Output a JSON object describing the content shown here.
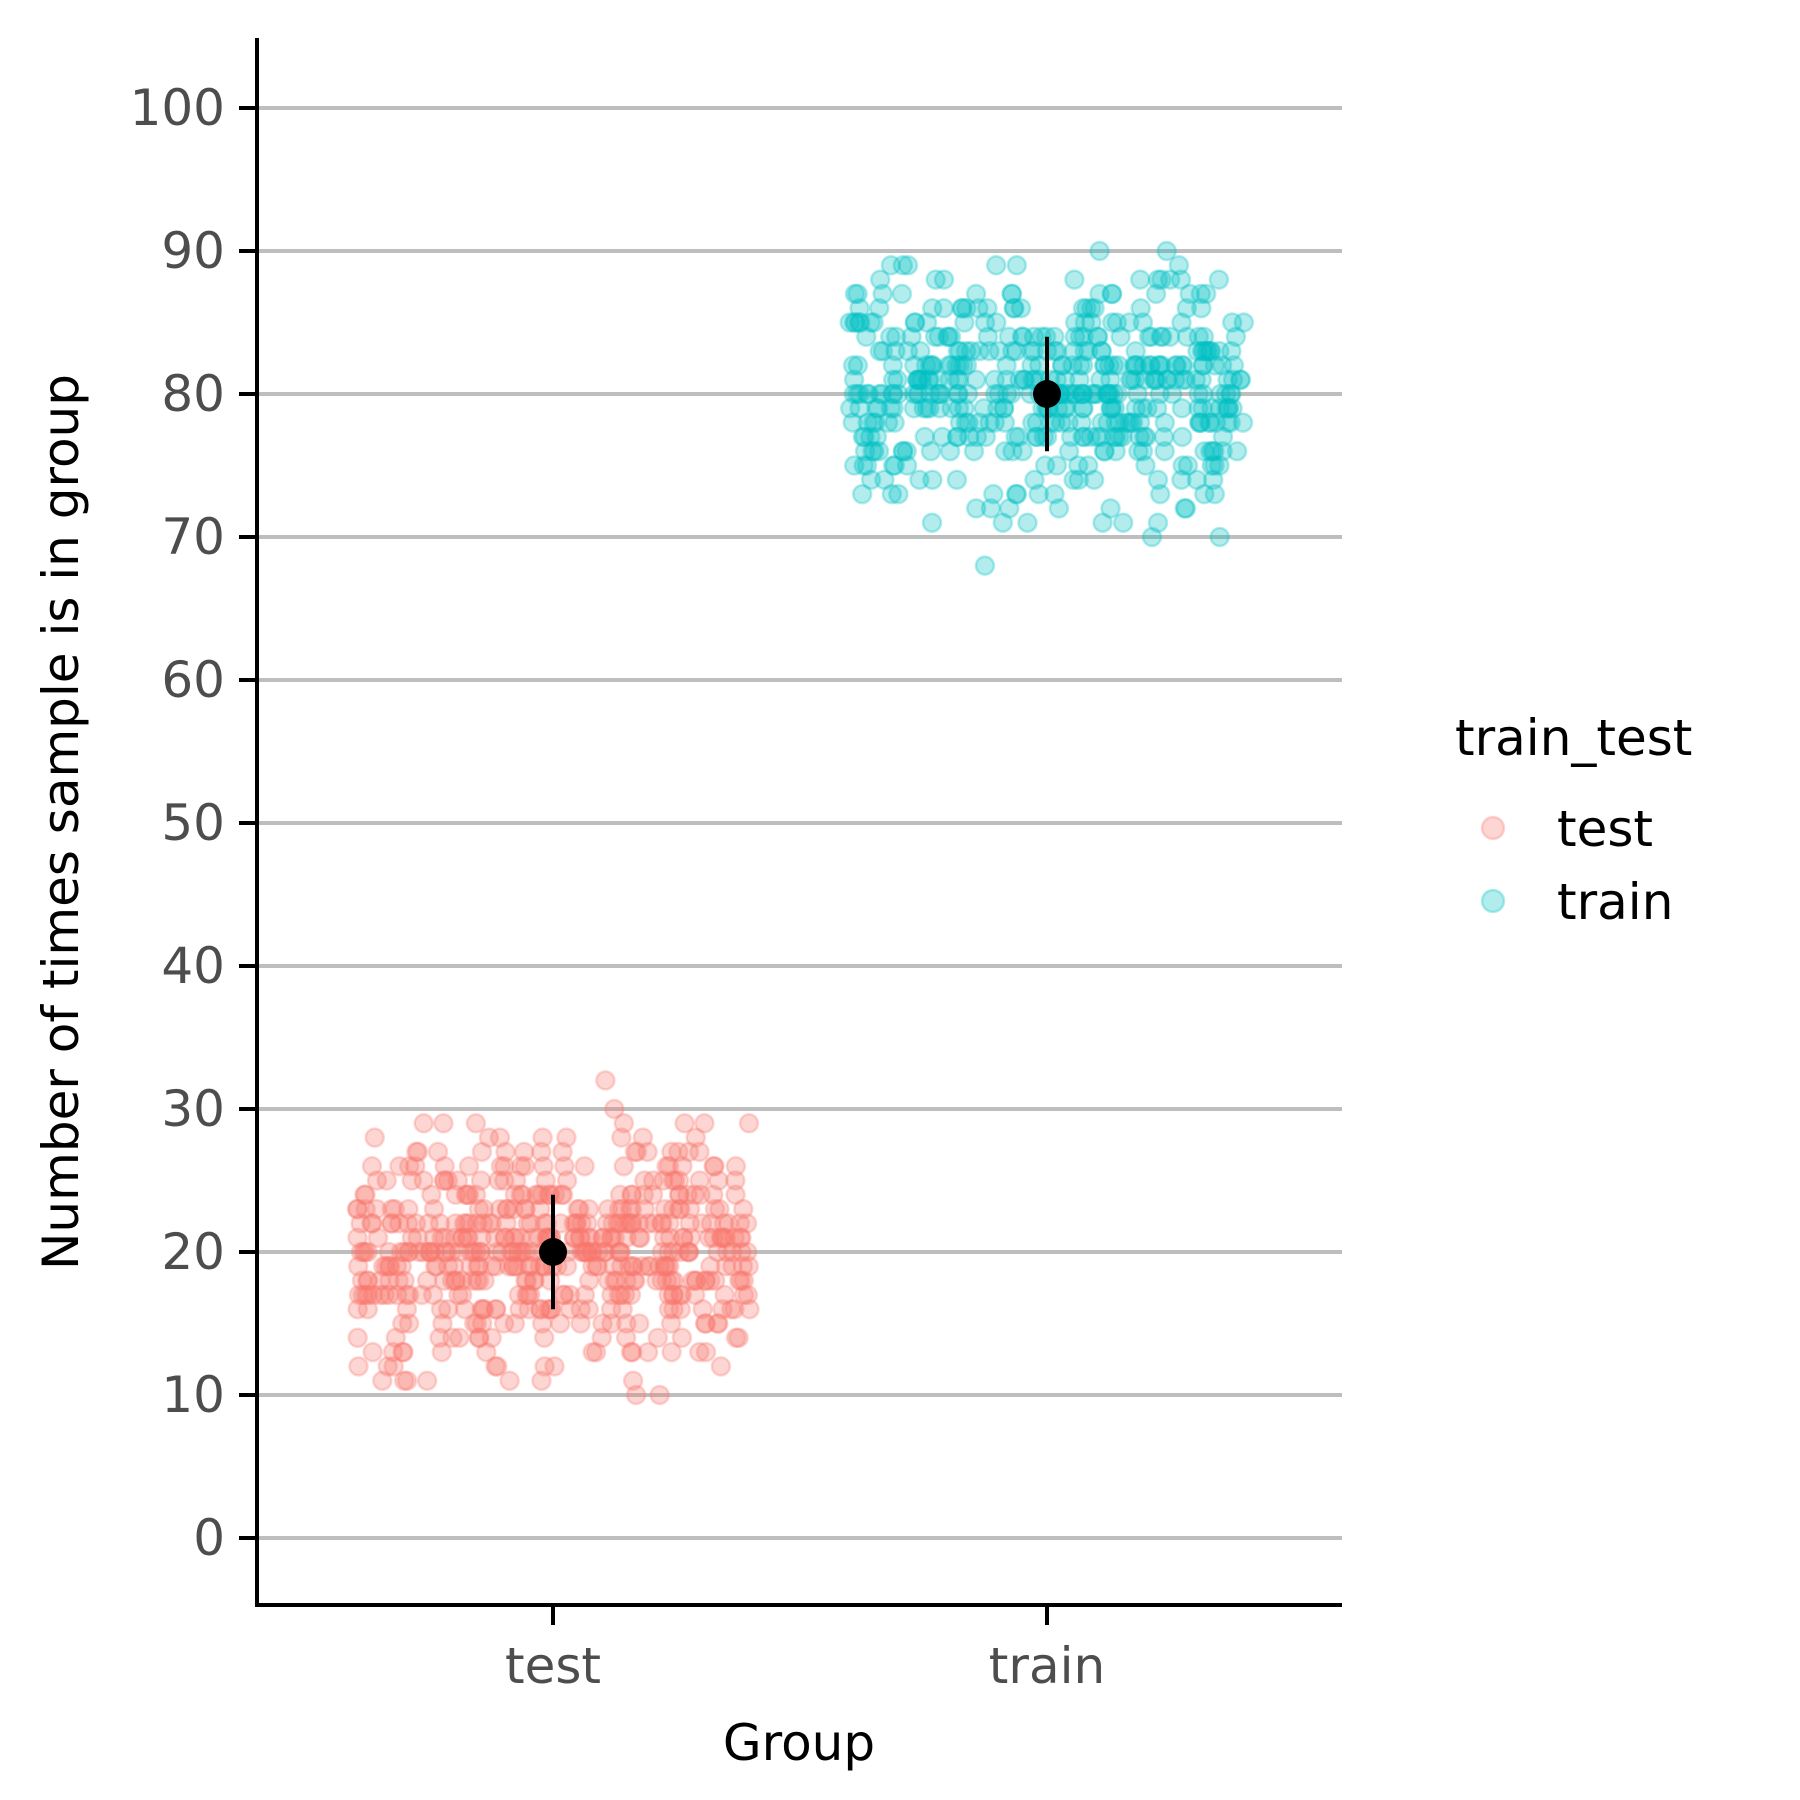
{
  "chart_data": {
    "type": "scatter",
    "xlabel": "Group",
    "ylabel": "Number of times sample is in group",
    "categories": [
      "test",
      "train"
    ],
    "ylim": [
      -5,
      105
    ],
    "yticks": [
      0,
      10,
      20,
      30,
      40,
      50,
      60,
      70,
      80,
      90,
      100
    ],
    "ytick_labels": [
      "0",
      "10",
      "20",
      "30",
      "40",
      "50",
      "60",
      "70",
      "80",
      "90",
      "100"
    ],
    "grid": "horizontal major",
    "legend": {
      "title": "train_test",
      "position": "right",
      "entries": [
        "test",
        "train"
      ]
    },
    "series": [
      {
        "name": "test",
        "category": "test",
        "color": "#F8766D",
        "jitter_width": 0.4,
        "values": [
          30,
          29,
          32,
          29,
          29,
          28,
          29,
          29,
          27,
          26,
          27,
          28,
          26,
          24,
          26,
          25,
          27,
          26,
          25,
          27,
          26,
          27,
          25,
          28,
          24,
          26,
          25,
          27,
          26,
          26,
          24,
          25,
          27,
          25,
          26,
          24,
          22,
          23,
          25,
          21,
          22,
          24,
          23,
          22,
          25,
          23,
          24,
          22,
          21,
          23,
          22,
          21,
          23,
          24,
          22,
          23,
          21,
          22,
          20,
          24,
          21,
          22,
          20,
          23,
          21,
          22,
          20,
          21,
          23,
          22,
          20,
          21,
          19,
          22,
          20,
          21,
          20,
          19,
          22,
          20,
          21,
          19,
          20,
          22,
          21,
          19,
          20,
          18,
          21,
          19,
          20,
          18,
          21,
          20,
          19,
          18,
          20,
          21,
          19,
          18,
          20,
          19,
          18,
          17,
          19,
          20,
          18,
          17,
          19,
          18,
          16,
          17,
          19,
          18,
          17,
          16,
          18,
          17,
          19,
          16,
          18,
          17,
          15,
          16,
          18,
          17,
          16,
          15,
          17,
          16,
          18,
          15,
          17,
          16,
          15,
          14,
          16,
          17,
          15,
          14,
          16,
          15,
          14,
          13,
          15,
          16,
          14,
          13,
          15,
          14,
          13,
          16,
          14,
          12,
          15,
          13,
          14,
          12,
          13,
          11,
          12,
          11,
          13,
          11,
          10,
          10,
          11,
          12,
          13,
          11,
          12,
          14,
          13,
          15,
          16,
          17,
          18,
          19,
          20,
          21,
          22,
          23,
          24,
          25,
          26,
          27,
          28,
          24,
          23,
          22,
          21,
          20,
          19,
          18,
          17,
          16,
          24,
          23,
          22,
          21,
          20,
          19,
          18,
          17,
          16,
          23,
          22,
          21,
          20,
          19,
          18,
          17,
          22,
          21,
          20,
          19,
          18,
          17,
          16,
          21,
          20,
          19,
          18,
          20,
          21,
          22,
          23,
          19,
          20,
          21,
          18,
          19,
          20,
          21,
          22,
          17,
          18,
          19,
          20,
          21,
          22,
          23,
          24,
          16,
          17,
          18,
          19,
          20,
          25,
          26,
          15,
          18,
          22,
          24,
          20,
          17,
          19,
          23,
          21,
          16,
          14,
          25,
          27,
          20,
          18,
          22,
          19,
          21,
          17,
          23,
          15,
          24,
          20,
          26,
          18,
          21,
          19,
          22,
          16,
          20,
          25,
          17,
          23,
          14,
          21,
          19,
          20,
          22,
          18,
          24,
          13,
          20,
          21,
          27,
          19,
          17,
          22,
          16,
          25,
          15,
          18,
          23,
          20,
          21,
          26,
          12,
          19,
          22,
          24,
          17,
          28,
          20,
          18,
          21,
          16,
          23,
          14,
          19,
          25,
          22,
          20,
          17,
          21,
          29,
          18,
          15,
          24,
          20,
          22,
          19,
          23,
          16,
          26,
          21,
          18,
          20,
          13,
          22,
          17,
          24,
          19,
          25,
          21,
          16,
          20,
          23,
          18,
          22,
          27,
          15,
          19,
          21,
          24,
          20,
          17,
          28,
          22,
          14,
          26,
          19,
          23,
          21,
          18,
          25,
          16,
          20,
          22,
          11,
          17,
          24,
          20,
          19,
          21,
          15,
          23,
          18,
          26,
          20,
          22,
          17,
          21,
          13,
          24,
          19,
          16,
          25,
          20,
          22,
          18,
          21,
          14,
          23,
          20,
          27,
          19,
          17,
          22,
          12,
          24,
          21,
          16,
          20,
          18,
          26,
          23,
          19,
          21,
          25,
          15,
          22,
          20,
          17,
          24,
          18,
          28,
          21,
          19,
          20,
          23,
          16,
          22,
          13,
          25,
          19,
          21,
          17,
          20,
          24,
          18,
          22,
          15,
          20,
          26,
          21,
          19,
          23,
          17,
          22,
          20,
          14,
          24,
          18,
          21,
          27,
          19,
          16,
          23,
          20,
          22,
          11,
          25,
          21,
          17,
          19,
          24,
          20,
          18,
          22,
          16,
          21,
          29,
          23,
          19,
          20,
          15,
          26,
          22,
          17,
          24,
          21,
          18,
          20,
          13,
          23,
          19,
          25,
          22,
          16,
          21,
          20,
          18,
          27,
          24,
          19,
          17,
          22,
          20,
          21,
          14,
          25,
          23,
          18,
          20,
          16,
          22,
          19,
          28,
          21,
          24,
          17,
          20,
          23,
          12,
          22,
          19,
          26,
          18,
          21,
          20,
          15,
          24,
          22,
          17,
          25,
          21,
          19,
          20,
          16,
          23,
          18,
          13,
          22,
          20,
          24,
          21,
          17,
          27,
          19,
          22,
          20,
          18,
          23
        ],
        "mean": 20,
        "error": [
          16,
          24
        ]
      },
      {
        "name": "train",
        "category": "train",
        "color": "#00BFC4",
        "jitter_width": 0.4,
        "values": [
          90,
          89,
          90,
          88,
          89,
          88,
          89,
          87,
          88,
          87,
          88,
          86,
          87,
          86,
          88,
          87,
          86,
          87,
          85,
          86,
          85,
          87,
          86,
          85,
          84,
          86,
          85,
          84,
          85,
          86,
          84,
          83,
          85,
          84,
          83,
          84,
          85,
          86,
          84,
          83,
          82,
          84,
          83,
          82,
          83,
          84,
          85,
          82,
          83,
          81,
          82,
          83,
          84,
          81,
          82,
          80,
          81,
          82,
          83,
          80,
          81,
          80,
          82,
          81,
          79,
          80,
          81,
          82,
          79,
          80,
          78,
          79,
          80,
          81,
          78,
          79,
          80,
          77,
          78,
          79,
          80,
          78,
          77,
          79,
          76,
          77,
          78,
          79,
          76,
          77,
          78,
          75,
          76,
          77,
          78,
          75,
          76,
          74,
          75,
          76,
          77,
          74,
          75,
          73,
          74,
          75,
          76,
          73,
          74,
          72,
          73,
          74,
          71,
          72,
          73,
          71,
          70,
          70,
          71,
          72,
          68,
          71,
          72,
          73,
          74,
          75,
          76,
          77,
          78,
          79,
          80,
          81,
          82,
          83,
          84,
          85,
          86,
          87,
          88,
          89,
          84,
          83,
          82,
          81,
          80,
          79,
          78,
          77,
          76,
          84,
          83,
          82,
          81,
          80,
          79,
          78,
          77,
          76,
          83,
          82,
          81,
          80,
          79,
          78,
          77,
          82,
          81,
          80,
          79,
          78,
          77,
          76,
          81,
          80,
          79,
          78,
          80,
          81,
          82,
          83,
          79,
          80,
          81,
          78,
          79,
          80,
          81,
          82,
          77,
          78,
          79,
          80,
          81,
          82,
          83,
          84,
          76,
          77,
          78,
          79,
          80,
          85,
          86,
          75,
          78,
          82,
          84,
          80,
          77,
          79,
          83,
          81,
          76,
          74,
          85,
          87,
          80,
          78,
          82,
          79,
          81,
          77,
          83,
          75,
          84,
          80,
          86,
          78,
          81,
          79,
          82,
          76,
          80,
          85,
          77,
          83,
          74,
          81,
          79,
          80,
          82,
          78,
          84,
          73,
          80,
          81,
          87,
          79,
          77,
          82,
          76,
          85,
          75,
          78,
          83,
          80,
          81,
          86,
          72,
          79,
          82,
          84,
          77,
          88,
          80,
          78,
          81,
          76,
          83,
          74,
          79,
          85,
          82,
          80,
          77,
          81,
          89,
          78,
          75,
          84,
          80,
          82,
          79,
          83,
          76,
          86,
          81,
          78,
          80,
          73,
          82,
          77,
          84,
          79,
          85,
          81,
          76,
          80,
          83,
          78,
          82,
          87,
          75,
          79,
          81,
          84,
          80,
          77,
          88,
          82,
          74,
          86,
          79,
          83,
          81,
          78,
          85,
          76,
          80,
          82,
          71,
          77,
          84,
          80,
          79,
          81,
          75,
          83,
          78,
          86,
          80,
          82,
          77,
          81,
          73,
          84,
          79,
          76,
          85,
          80,
          82,
          78,
          81,
          74,
          83,
          80,
          87,
          79,
          77,
          82,
          72,
          84,
          81,
          76,
          80,
          78,
          86,
          83,
          79,
          81,
          85,
          75,
          82,
          80,
          77,
          84,
          78,
          88,
          81,
          79,
          80,
          83,
          76,
          82,
          73,
          85,
          79,
          81,
          77,
          80,
          84,
          78,
          82,
          75,
          80,
          86,
          81,
          79,
          83,
          77,
          82,
          80,
          74,
          84,
          78,
          81,
          87,
          79,
          76,
          83,
          80,
          82,
          71,
          85,
          81,
          77,
          79,
          84,
          80,
          78,
          82,
          76,
          81,
          89,
          83,
          79,
          80,
          75,
          86,
          82,
          77,
          84,
          81,
          78,
          80,
          73,
          83,
          79,
          85,
          82,
          76,
          81,
          80,
          78,
          87,
          84,
          79,
          77,
          82,
          80,
          81,
          74,
          85,
          83,
          78,
          80,
          76,
          82,
          79,
          88,
          81,
          84,
          77,
          80,
          83,
          72,
          82,
          79,
          86,
          78,
          81,
          80,
          75,
          84,
          82,
          77,
          85,
          81,
          79,
          80,
          76,
          83,
          78,
          73,
          82,
          80,
          84,
          81,
          77,
          87,
          79,
          82,
          80,
          78,
          83
        ],
        "mean": 80,
        "error": [
          76,
          84
        ]
      }
    ]
  }
}
